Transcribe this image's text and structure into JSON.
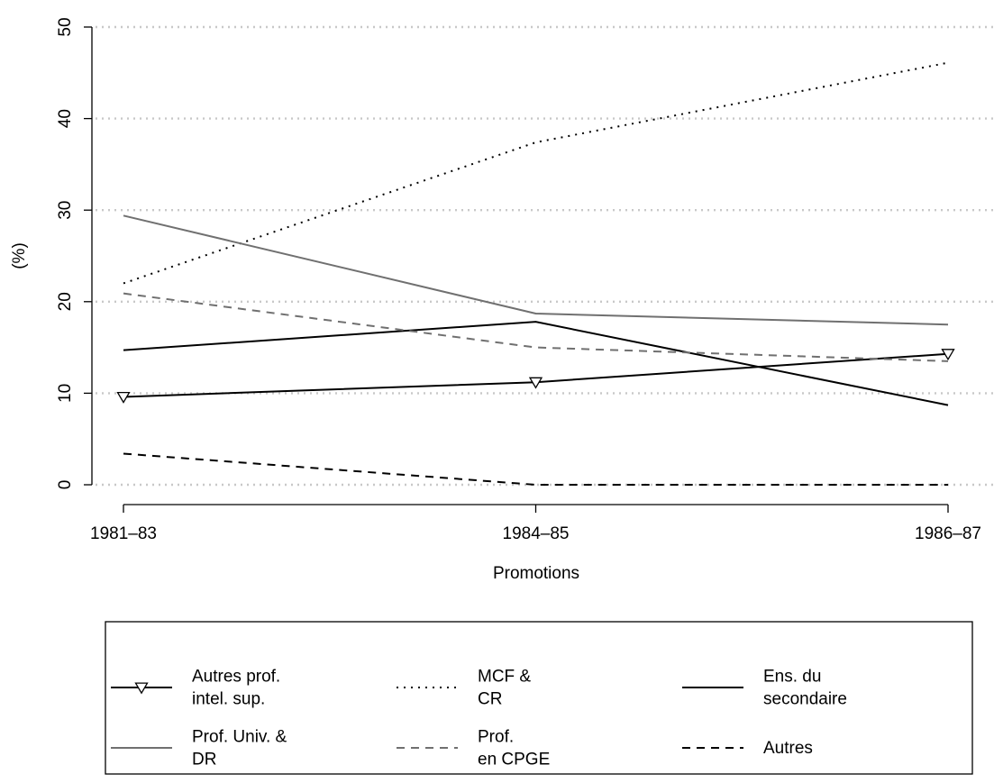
{
  "chart_data": {
    "type": "line",
    "categories": [
      "1981–83",
      "1984–85",
      "1986–87"
    ],
    "xlabel": "Promotions",
    "ylabel": "(%)",
    "ylim": [
      0,
      50
    ],
    "yticks": [
      "0",
      "10",
      "20",
      "30",
      "40",
      "50"
    ],
    "grid": "horizontal dotted",
    "legend_position": "bottom",
    "series": [
      {
        "name": "Autres prof.\nintel. sup.",
        "values": [
          9.6,
          11.2,
          14.3
        ],
        "color": "#000000",
        "dash": "solid",
        "marker": "triangle-down"
      },
      {
        "name": "MCF &\nCR",
        "values": [
          22.0,
          37.4,
          46.1
        ],
        "color": "#000000",
        "dash": "dotted",
        "marker": "none"
      },
      {
        "name": "Ens. du\nsecondaire",
        "values": [
          14.7,
          17.8,
          8.7
        ],
        "color": "#000000",
        "dash": "solid",
        "marker": "none"
      },
      {
        "name": "Prof. Univ. &\nDR",
        "values": [
          29.4,
          18.7,
          17.5
        ],
        "color": "#707070",
        "dash": "solid",
        "marker": "none"
      },
      {
        "name": "Prof.\nen CPGE",
        "values": [
          20.9,
          15.0,
          13.5
        ],
        "color": "#707070",
        "dash": "dashed",
        "marker": "none"
      },
      {
        "name": "Autres",
        "values": [
          3.4,
          0.0,
          0.0
        ],
        "color": "#000000",
        "dash": "dashed",
        "marker": "none"
      }
    ]
  }
}
